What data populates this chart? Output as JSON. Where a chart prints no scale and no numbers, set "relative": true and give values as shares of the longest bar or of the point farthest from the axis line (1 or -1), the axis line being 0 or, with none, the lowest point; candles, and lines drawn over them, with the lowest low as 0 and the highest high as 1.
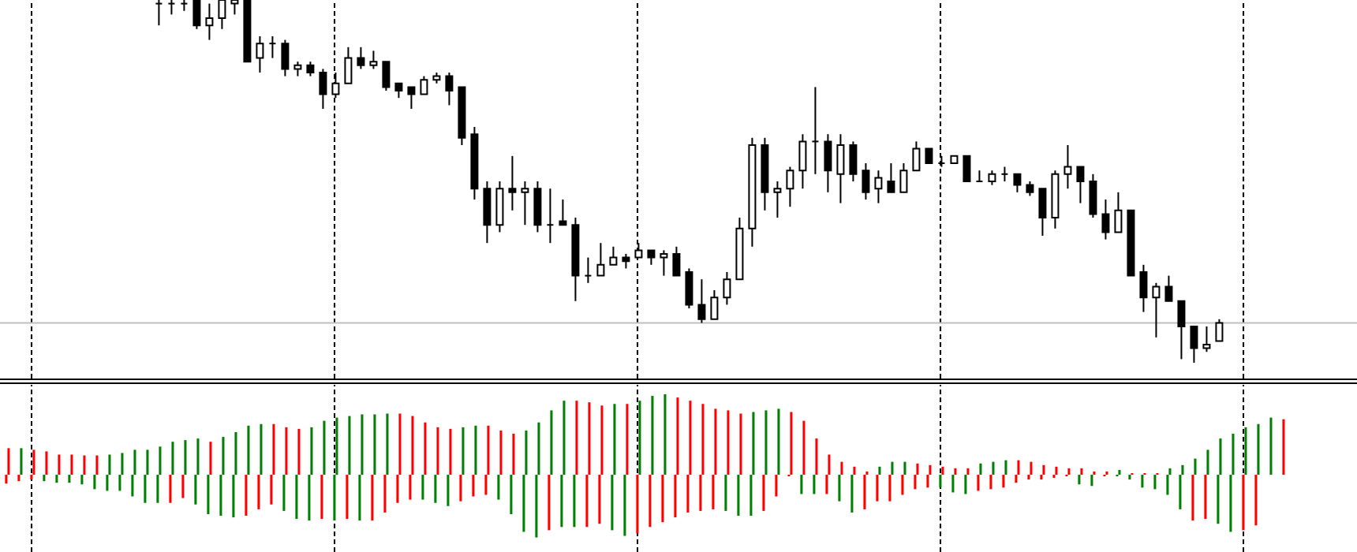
{
  "chart_data": [
    {
      "type": "candlestick",
      "relative": true,
      "grid": "x",
      "categories": [
        null,
        null,
        null,
        null,
        null,
        null,
        null,
        null,
        null,
        null,
        null,
        null,
        null,
        null,
        null,
        null,
        null,
        null,
        null,
        null,
        null,
        null,
        null,
        null,
        null,
        null,
        null,
        null,
        null,
        null,
        null,
        null,
        null,
        null,
        null,
        null,
        null,
        null,
        null,
        null,
        null,
        null,
        null,
        null,
        null,
        null,
        null,
        null,
        null,
        null,
        null,
        null,
        null,
        null,
        null,
        null,
        null,
        null,
        null,
        null,
        null,
        null,
        null,
        null,
        null,
        null,
        null,
        null,
        null,
        null,
        null,
        null,
        null,
        null,
        null,
        null,
        null,
        null,
        null,
        null,
        null,
        null,
        null,
        null,
        null,
        null,
        null,
        null,
        null,
        null,
        null,
        null,
        null,
        null,
        null,
        null,
        null,
        null,
        null,
        null,
        null,
        null
      ],
      "ohlc": [
        null,
        null,
        null,
        null,
        null,
        null,
        null,
        null,
        null,
        null,
        null,
        null,
        [
          0.99,
          1,
          0.93,
          0.99
        ],
        [
          0.99,
          1,
          0.96,
          0.99
        ],
        [
          0.99,
          1,
          0.97,
          0.99
        ],
        [
          1,
          1,
          0.92,
          0.93
        ],
        [
          0.93,
          0.99,
          0.89,
          0.95
        ],
        [
          0.95,
          1,
          0.92,
          1
        ],
        [
          0.99,
          1,
          0.96,
          1
        ],
        [
          1,
          1,
          0.83,
          0.83
        ],
        [
          0.84,
          0.9,
          0.8,
          0.88
        ],
        [
          0.88,
          0.9,
          0.84,
          0.88
        ],
        [
          0.88,
          0.89,
          0.79,
          0.81
        ],
        [
          0.81,
          0.83,
          0.79,
          0.82
        ],
        [
          0.82,
          0.83,
          0.79,
          0.8
        ],
        [
          0.8,
          0.81,
          0.7,
          0.74
        ],
        [
          0.74,
          0.8,
          0.73,
          0.77
        ],
        [
          0.77,
          0.87,
          0.77,
          0.84
        ],
        [
          0.84,
          0.87,
          0.81,
          0.82
        ],
        [
          0.82,
          0.86,
          0.81,
          0.83
        ],
        [
          0.83,
          0.83,
          0.75,
          0.76
        ],
        [
          0.77,
          0.77,
          0.73,
          0.75
        ],
        [
          0.76,
          0.76,
          0.7,
          0.74
        ],
        [
          0.74,
          0.79,
          0.74,
          0.78
        ],
        [
          0.78,
          0.8,
          0.77,
          0.79
        ],
        [
          0.79,
          0.8,
          0.71,
          0.75
        ],
        [
          0.76,
          0.76,
          0.6,
          0.62
        ],
        [
          0.63,
          0.65,
          0.45,
          0.48
        ],
        [
          0.48,
          0.5,
          0.33,
          0.38
        ],
        [
          0.38,
          0.5,
          0.36,
          0.48
        ],
        [
          0.48,
          0.57,
          0.42,
          0.47
        ],
        [
          0.47,
          0.5,
          0.38,
          0.48
        ],
        [
          0.48,
          0.5,
          0.36,
          0.38
        ],
        [
          0.38,
          0.48,
          0.33,
          0.38
        ],
        [
          0.39,
          0.45,
          0.38,
          0.38
        ],
        [
          0.38,
          0.4,
          0.17,
          0.24
        ],
        [
          0.24,
          0.29,
          0.22,
          0.24
        ],
        [
          0.24,
          0.33,
          0.24,
          0.27
        ],
        [
          0.27,
          0.32,
          0.27,
          0.29
        ],
        [
          0.29,
          0.3,
          0.26,
          0.28
        ],
        [
          0.29,
          0.33,
          0.29,
          0.31
        ],
        [
          0.31,
          0.31,
          0.27,
          0.29
        ],
        [
          0.29,
          0.31,
          0.24,
          0.3
        ],
        [
          0.3,
          0.32,
          0.24,
          0.24
        ],
        [
          0.25,
          0.26,
          0.15,
          0.16
        ],
        [
          0.16,
          0.23,
          0.11,
          0.12
        ],
        [
          0.12,
          0.2,
          0.12,
          0.18
        ],
        [
          0.18,
          0.25,
          0.16,
          0.23
        ],
        [
          0.23,
          0.4,
          0.23,
          0.37
        ],
        [
          0.37,
          0.62,
          0.32,
          0.6
        ],
        [
          0.6,
          0.62,
          0.42,
          0.47
        ],
        [
          0.47,
          0.5,
          0.4,
          0.48
        ],
        [
          0.48,
          0.54,
          0.43,
          0.53
        ],
        [
          0.53,
          0.63,
          0.48,
          0.61
        ],
        [
          0.61,
          0.76,
          0.52,
          0.61
        ],
        [
          0.61,
          0.63,
          0.47,
          0.53
        ],
        [
          0.52,
          0.63,
          0.44,
          0.6
        ],
        [
          0.6,
          0.61,
          0.5,
          0.52
        ],
        [
          0.53,
          0.55,
          0.45,
          0.47
        ],
        [
          0.48,
          0.53,
          0.44,
          0.51
        ],
        [
          0.5,
          0.55,
          0.47,
          0.47
        ],
        [
          0.47,
          0.55,
          0.47,
          0.53
        ],
        [
          0.53,
          0.61,
          0.53,
          0.59
        ],
        [
          0.59,
          0.59,
          0.55,
          0.55
        ],
        [
          0.55,
          0.57,
          0.54,
          0.55
        ],
        [
          0.55,
          0.57,
          0.55,
          0.57
        ],
        [
          0.57,
          0.57,
          0.5,
          0.5
        ],
        [
          0.5,
          0.53,
          0.5,
          0.5
        ],
        [
          0.5,
          0.53,
          0.49,
          0.52
        ],
        [
          0.52,
          0.54,
          0.5,
          0.52
        ],
        [
          0.52,
          0.52,
          0.47,
          0.49
        ],
        [
          0.49,
          0.5,
          0.46,
          0.47
        ],
        [
          0.48,
          0.48,
          0.35,
          0.4
        ],
        [
          0.4,
          0.53,
          0.37,
          0.52
        ],
        [
          0.52,
          0.6,
          0.48,
          0.54
        ],
        [
          0.54,
          0.54,
          0.44,
          0.5
        ],
        [
          0.5,
          0.52,
          0.4,
          0.41
        ],
        [
          0.41,
          0.45,
          0.34,
          0.36
        ],
        [
          0.36,
          0.47,
          0.36,
          0.42
        ],
        [
          0.42,
          0.42,
          0.24,
          0.24
        ],
        [
          0.25,
          0.27,
          0.14,
          0.18
        ],
        [
          0.18,
          0.22,
          0.07,
          0.21
        ],
        [
          0.21,
          0.24,
          0.17,
          0.17
        ],
        [
          0.17,
          0.17,
          0.01,
          0.1
        ],
        [
          0.1,
          0.1,
          0,
          0.04
        ],
        [
          0.04,
          0.1,
          0.03,
          0.05
        ],
        [
          0.06,
          0.12,
          0.06,
          0.11
        ],
        null,
        null,
        null,
        null,
        null
      ],
      "ref_lines": [
        {
          "axis": "y",
          "value": 0.11,
          "color": "#c0c0c0",
          "line_style": "solid"
        }
      ]
    },
    {
      "type": "bar",
      "relative": true,
      "grid": "x",
      "categories": [
        null,
        null,
        null,
        null,
        null,
        null,
        null,
        null,
        null,
        null,
        null,
        null,
        null,
        null,
        null,
        null,
        null,
        null,
        null,
        null,
        null,
        null,
        null,
        null,
        null,
        null,
        null,
        null,
        null,
        null,
        null,
        null,
        null,
        null,
        null,
        null,
        null,
        null,
        null,
        null,
        null,
        null,
        null,
        null,
        null,
        null,
        null,
        null,
        null,
        null,
        null,
        null,
        null,
        null,
        null,
        null,
        null,
        null,
        null,
        null,
        null,
        null,
        null,
        null,
        null,
        null,
        null,
        null,
        null,
        null,
        null,
        null,
        null,
        null,
        null,
        null,
        null,
        null,
        null,
        null,
        null,
        null,
        null,
        null,
        null,
        null,
        null,
        null,
        null,
        null,
        null,
        null,
        null,
        null,
        null,
        null,
        null,
        null,
        null,
        null,
        null,
        null
      ],
      "series": [
        {
          "values": [
            -0.11,
            -0.08,
            -0.06,
            -0.08,
            -0.1,
            -0.1,
            -0.12,
            -0.18,
            -0.2,
            -0.2,
            -0.27,
            -0.35,
            -0.35,
            -0.35,
            -0.29,
            -0.37,
            -0.49,
            -0.51,
            -0.53,
            -0.51,
            -0.43,
            -0.37,
            -0.45,
            -0.55,
            -0.57,
            -0.55,
            -0.57,
            -0.55,
            -0.57,
            -0.57,
            -0.47,
            -0.35,
            -0.31,
            -0.31,
            -0.35,
            -0.39,
            -0.33,
            -0.27,
            -0.25,
            -0.31,
            -0.49,
            -0.71,
            -0.78,
            -0.69,
            -0.65,
            -0.65,
            -0.65,
            -0.61,
            -0.69,
            -0.76,
            -0.73,
            -0.65,
            -0.59,
            -0.53,
            -0.47,
            -0.45,
            -0.43,
            -0.45,
            -0.51,
            -0.51,
            -0.45,
            -0.27,
            -0.02,
            -0.24,
            -0.24,
            -0.24,
            -0.33,
            -0.47,
            -0.43,
            -0.33,
            -0.33,
            -0.25,
            -0.18,
            -0.16,
            -0.16,
            -0.22,
            -0.24,
            -0.2,
            -0.18,
            -0.16,
            -0.1,
            -0.06,
            -0.06,
            -0.04,
            -0.02,
            -0.12,
            -0.14,
            -0.02,
            -0.02,
            -0.06,
            -0.16,
            -0.18,
            -0.25,
            -0.43,
            -0.57,
            -0.55,
            -0.61,
            -0.71,
            -0.69,
            -0.63,
            null,
            null
          ],
          "colors": [
            "#ff0000",
            "#ff0000",
            "#ff0000",
            "#008000",
            "#008000",
            "#008000",
            "#008000",
            "#008000",
            "#008000",
            "#008000",
            "#008000",
            "#008000",
            "#008000",
            "#ff0000",
            "#ff0000",
            "#008000",
            "#008000",
            "#008000",
            "#008000",
            "#ff0000",
            "#ff0000",
            "#ff0000",
            "#008000",
            "#008000",
            "#008000",
            "#ff0000",
            "#008000",
            "#ff0000",
            "#008000",
            "#ff0000",
            "#ff0000",
            "#ff0000",
            "#ff0000",
            "#008000",
            "#008000",
            "#008000",
            "#ff0000",
            "#ff0000",
            "#ff0000",
            "#008000",
            "#008000",
            "#008000",
            "#008000",
            "#ff0000",
            "#008000",
            "#008000",
            "#ff0000",
            "#ff0000",
            "#008000",
            "#008000",
            "#ff0000",
            "#ff0000",
            "#ff0000",
            "#ff0000",
            "#ff0000",
            "#ff0000",
            "#ff0000",
            "#008000",
            "#008000",
            "#008000",
            "#ff0000",
            "#ff0000",
            "#ff0000",
            "#008000",
            "#008000",
            "#ff0000",
            "#008000",
            "#008000",
            "#ff0000",
            "#ff0000",
            "#ff0000",
            "#ff0000",
            "#ff0000",
            "#ff0000",
            "#008000",
            "#008000",
            "#008000",
            "#ff0000",
            "#ff0000",
            "#ff0000",
            "#ff0000",
            "#ff0000",
            "#ff0000",
            "#ff0000",
            "#ff0000",
            "#008000",
            "#008000",
            "#ff0000",
            "#008000",
            "#008000",
            "#008000",
            "#008000",
            "#008000",
            "#008000",
            "#ff0000",
            "#ff0000",
            "#008000",
            "#008000",
            "#ff0000",
            "#ff0000",
            "#008000",
            "#008000"
          ]
        },
        {
          "values": [
            0.33,
            0.33,
            0.31,
            0.29,
            0.25,
            0.25,
            0.24,
            0.24,
            0.25,
            0.27,
            0.31,
            0.31,
            0.35,
            0.41,
            0.43,
            0.45,
            0.41,
            0.47,
            0.53,
            0.61,
            0.63,
            0.63,
            0.59,
            0.57,
            0.59,
            0.67,
            0.71,
            0.73,
            0.75,
            0.75,
            0.76,
            0.76,
            0.73,
            0.65,
            0.59,
            0.57,
            0.59,
            0.61,
            0.61,
            0.55,
            0.51,
            0.55,
            0.65,
            0.8,
            0.92,
            0.92,
            0.9,
            0.86,
            0.88,
            0.88,
            0.92,
            0.98,
            1,
            0.96,
            0.92,
            0.88,
            0.82,
            0.8,
            0.76,
            0.78,
            0.8,
            0.82,
            0.78,
            0.67,
            0.45,
            0.25,
            0.16,
            0.1,
            0.04,
            0.1,
            0.16,
            0.16,
            0.14,
            0.12,
            0.1,
            0.08,
            0.08,
            0.14,
            0.16,
            0.18,
            0.18,
            0.16,
            0.12,
            0.1,
            0.08,
            0.08,
            0.04,
            0.04,
            0.06,
            0.02,
            0.02,
            0.02,
            0.08,
            0.12,
            0.2,
            0.31,
            0.45,
            0.51,
            0.59,
            0.63,
            0.71,
            0.69
          ],
          "colors": [
            "#ff0000",
            "#008000",
            "#ff0000",
            "#ff0000",
            "#ff0000",
            "#ff0000",
            "#ff0000",
            "#ff0000",
            "#008000",
            "#008000",
            "#008000",
            "#008000",
            "#008000",
            "#008000",
            "#008000",
            "#008000",
            "#ff0000",
            "#008000",
            "#008000",
            "#008000",
            "#008000",
            "#ff0000",
            "#ff0000",
            "#ff0000",
            "#008000",
            "#008000",
            "#008000",
            "#008000",
            "#008000",
            "#008000",
            "#008000",
            "#ff0000",
            "#ff0000",
            "#ff0000",
            "#ff0000",
            "#ff0000",
            "#008000",
            "#008000",
            "#ff0000",
            "#ff0000",
            "#ff0000",
            "#008000",
            "#008000",
            "#008000",
            "#008000",
            "#ff0000",
            "#ff0000",
            "#ff0000",
            "#008000",
            "#ff0000",
            "#008000",
            "#008000",
            "#008000",
            "#ff0000",
            "#ff0000",
            "#ff0000",
            "#ff0000",
            "#ff0000",
            "#ff0000",
            "#008000",
            "#008000",
            "#008000",
            "#ff0000",
            "#ff0000",
            "#ff0000",
            "#ff0000",
            "#ff0000",
            "#ff0000",
            "#ff0000",
            "#008000",
            "#008000",
            "#008000",
            "#ff0000",
            "#ff0000",
            "#ff0000",
            "#ff0000",
            "#ff0000",
            "#008000",
            "#008000",
            "#008000",
            "#ff0000",
            "#ff0000",
            "#ff0000",
            "#ff0000",
            "#ff0000",
            "#ff0000",
            "#ff0000",
            "#ff0000",
            "#008000",
            "#ff0000",
            "#ff0000",
            "#ff0000",
            "#008000",
            "#008000",
            "#008000",
            "#008000",
            "#008000",
            "#008000",
            "#008000",
            "#008000",
            "#008000",
            "#ff0000"
          ]
        }
      ]
    }
  ]
}
